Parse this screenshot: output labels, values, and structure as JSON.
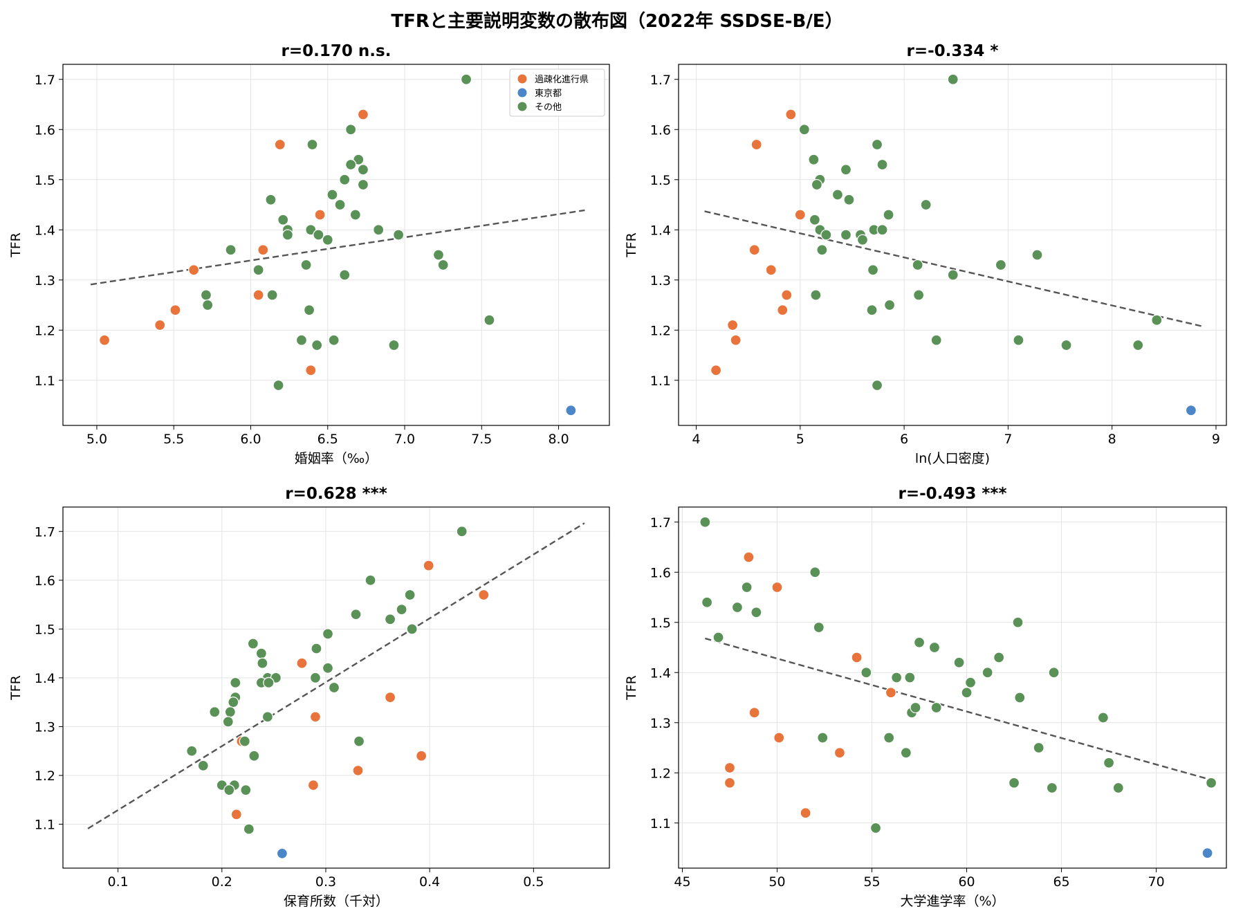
{
  "figure": {
    "title": "TFRと主要説明変数の散布図（2022年 SSDSE-B/E）"
  },
  "legend": {
    "items": [
      {
        "label": "過疎化進行県",
        "color": "#E8743B"
      },
      {
        "label": "東京都",
        "color": "#4A86C8"
      },
      {
        "label": "その他",
        "color": "#5A9157"
      }
    ]
  },
  "chart_data": [
    {
      "type": "scatter",
      "title": "r=0.170 n.s.",
      "xlabel": "婚姻率（‰）",
      "ylabel": "TFR",
      "xlim": [
        4.78,
        8.33
      ],
      "ylim": [
        1.01,
        1.73
      ],
      "xticks": [
        5.0,
        5.5,
        6.0,
        6.5,
        7.0,
        7.5,
        8.0
      ],
      "xtick_labels": [
        "5.0",
        "5.5",
        "6.0",
        "6.5",
        "7.0",
        "7.5",
        "8.0"
      ],
      "yticks": [
        1.1,
        1.2,
        1.3,
        1.4,
        1.5,
        1.6,
        1.7
      ],
      "ytick_labels": [
        "1.1",
        "1.2",
        "1.3",
        "1.4",
        "1.5",
        "1.6",
        "1.7"
      ],
      "legend": true,
      "trend": {
        "x": [
          4.96,
          8.17
        ],
        "y": [
          1.291,
          1.439
        ]
      },
      "series": [
        {
          "name": "過疎化進行県",
          "color": "#E8743B",
          "points": [
            [
              5.05,
              1.18
            ],
            [
              5.41,
              1.21
            ],
            [
              5.51,
              1.24
            ],
            [
              5.63,
              1.32
            ],
            [
              6.05,
              1.27
            ],
            [
              6.08,
              1.36
            ],
            [
              6.19,
              1.57
            ],
            [
              6.39,
              1.12
            ],
            [
              6.45,
              1.43
            ],
            [
              6.73,
              1.63
            ]
          ]
        },
        {
          "name": "東京都",
          "color": "#4A86C8",
          "points": [
            [
              8.08,
              1.04
            ]
          ]
        },
        {
          "name": "その他",
          "color": "#5A9157",
          "points": [
            [
              7.4,
              1.7
            ],
            [
              6.65,
              1.6
            ],
            [
              6.4,
              1.57
            ],
            [
              6.7,
              1.54
            ],
            [
              6.65,
              1.53
            ],
            [
              6.73,
              1.52
            ],
            [
              6.61,
              1.5
            ],
            [
              6.73,
              1.49
            ],
            [
              6.53,
              1.47
            ],
            [
              6.13,
              1.46
            ],
            [
              6.58,
              1.45
            ],
            [
              6.68,
              1.43
            ],
            [
              6.21,
              1.42
            ],
            [
              6.24,
              1.4
            ],
            [
              6.39,
              1.4
            ],
            [
              6.83,
              1.4
            ],
            [
              6.24,
              1.39
            ],
            [
              6.44,
              1.39
            ],
            [
              6.96,
              1.39
            ],
            [
              6.5,
              1.38
            ],
            [
              5.87,
              1.36
            ],
            [
              7.22,
              1.35
            ],
            [
              6.36,
              1.33
            ],
            [
              7.25,
              1.33
            ],
            [
              6.05,
              1.32
            ],
            [
              6.61,
              1.31
            ],
            [
              5.71,
              1.27
            ],
            [
              6.14,
              1.27
            ],
            [
              5.72,
              1.25
            ],
            [
              6.38,
              1.24
            ],
            [
              7.55,
              1.22
            ],
            [
              6.33,
              1.18
            ],
            [
              6.54,
              1.18
            ],
            [
              6.43,
              1.17
            ],
            [
              6.93,
              1.17
            ],
            [
              6.18,
              1.09
            ]
          ]
        }
      ]
    },
    {
      "type": "scatter",
      "title": "r=-0.334 *",
      "xlabel": "ln(人口密度)",
      "ylabel": "TFR",
      "xlim": [
        3.83,
        9.1
      ],
      "ylim": [
        1.01,
        1.73
      ],
      "xticks": [
        4,
        5,
        6,
        7,
        8,
        9
      ],
      "xtick_labels": [
        "4",
        "5",
        "6",
        "7",
        "8",
        "9"
      ],
      "yticks": [
        1.1,
        1.2,
        1.3,
        1.4,
        1.5,
        1.6,
        1.7
      ],
      "ytick_labels": [
        "1.1",
        "1.2",
        "1.3",
        "1.4",
        "1.5",
        "1.6",
        "1.7"
      ],
      "legend": false,
      "trend": {
        "x": [
          4.08,
          8.86
        ],
        "y": [
          1.437,
          1.208
        ]
      },
      "series": [
        {
          "name": "過疎化進行県",
          "color": "#E8743B",
          "points": [
            [
              4.19,
              1.12
            ],
            [
              4.35,
              1.21
            ],
            [
              4.38,
              1.18
            ],
            [
              4.56,
              1.36
            ],
            [
              4.58,
              1.57
            ],
            [
              4.72,
              1.32
            ],
            [
              4.83,
              1.24
            ],
            [
              4.87,
              1.27
            ],
            [
              4.91,
              1.63
            ],
            [
              5.0,
              1.43
            ]
          ]
        },
        {
          "name": "東京都",
          "color": "#4A86C8",
          "points": [
            [
              8.76,
              1.04
            ]
          ]
        },
        {
          "name": "その他",
          "color": "#5A9157",
          "points": [
            [
              6.47,
              1.7
            ],
            [
              5.04,
              1.6
            ],
            [
              5.74,
              1.57
            ],
            [
              5.13,
              1.54
            ],
            [
              5.79,
              1.53
            ],
            [
              5.44,
              1.52
            ],
            [
              5.19,
              1.5
            ],
            [
              5.16,
              1.49
            ],
            [
              5.36,
              1.47
            ],
            [
              5.47,
              1.46
            ],
            [
              6.21,
              1.45
            ],
            [
              5.85,
              1.43
            ],
            [
              5.14,
              1.42
            ],
            [
              5.19,
              1.4
            ],
            [
              5.71,
              1.4
            ],
            [
              5.79,
              1.4
            ],
            [
              5.25,
              1.39
            ],
            [
              5.44,
              1.39
            ],
            [
              5.58,
              1.39
            ],
            [
              5.6,
              1.38
            ],
            [
              5.21,
              1.36
            ],
            [
              7.28,
              1.35
            ],
            [
              6.13,
              1.33
            ],
            [
              6.93,
              1.33
            ],
            [
              5.7,
              1.32
            ],
            [
              6.47,
              1.31
            ],
            [
              5.15,
              1.27
            ],
            [
              6.14,
              1.27
            ],
            [
              5.86,
              1.25
            ],
            [
              5.69,
              1.24
            ],
            [
              8.43,
              1.22
            ],
            [
              6.31,
              1.18
            ],
            [
              7.1,
              1.18
            ],
            [
              7.56,
              1.17
            ],
            [
              8.25,
              1.17
            ],
            [
              5.74,
              1.09
            ]
          ]
        }
      ]
    },
    {
      "type": "scatter",
      "title": "r=0.628 ***",
      "xlabel": "保育所数（千対）",
      "ylabel": "TFR",
      "xlim": [
        0.047,
        0.573
      ],
      "ylim": [
        1.01,
        1.75
      ],
      "xticks": [
        0.1,
        0.2,
        0.3,
        0.4,
        0.5
      ],
      "xtick_labels": [
        "0.1",
        "0.2",
        "0.3",
        "0.4",
        "0.5"
      ],
      "yticks": [
        1.1,
        1.2,
        1.3,
        1.4,
        1.5,
        1.6,
        1.7
      ],
      "ytick_labels": [
        "1.1",
        "1.2",
        "1.3",
        "1.4",
        "1.5",
        "1.6",
        "1.7"
      ],
      "legend": false,
      "trend": {
        "x": [
          0.071,
          0.549
        ],
        "y": [
          1.091,
          1.717
        ]
      },
      "series": [
        {
          "name": "過疎化進行県",
          "color": "#E8743B",
          "points": [
            [
              0.214,
              1.12
            ],
            [
              0.219,
              1.27
            ],
            [
              0.277,
              1.43
            ],
            [
              0.288,
              1.18
            ],
            [
              0.29,
              1.32
            ],
            [
              0.331,
              1.21
            ],
            [
              0.362,
              1.36
            ],
            [
              0.392,
              1.24
            ],
            [
              0.399,
              1.63
            ],
            [
              0.452,
              1.57
            ]
          ]
        },
        {
          "name": "東京都",
          "color": "#4A86C8",
          "points": [
            [
              0.258,
              1.04
            ]
          ]
        },
        {
          "name": "その他",
          "color": "#5A9157",
          "points": [
            [
              0.431,
              1.7
            ],
            [
              0.343,
              1.6
            ],
            [
              0.381,
              1.57
            ],
            [
              0.373,
              1.54
            ],
            [
              0.329,
              1.53
            ],
            [
              0.362,
              1.52
            ],
            [
              0.383,
              1.5
            ],
            [
              0.302,
              1.49
            ],
            [
              0.23,
              1.47
            ],
            [
              0.291,
              1.46
            ],
            [
              0.238,
              1.45
            ],
            [
              0.239,
              1.43
            ],
            [
              0.302,
              1.42
            ],
            [
              0.244,
              1.4
            ],
            [
              0.252,
              1.4
            ],
            [
              0.29,
              1.4
            ],
            [
              0.238,
              1.39
            ],
            [
              0.245,
              1.39
            ],
            [
              0.213,
              1.39
            ],
            [
              0.308,
              1.38
            ],
            [
              0.213,
              1.36
            ],
            [
              0.211,
              1.35
            ],
            [
              0.193,
              1.33
            ],
            [
              0.208,
              1.33
            ],
            [
              0.244,
              1.32
            ],
            [
              0.206,
              1.31
            ],
            [
              0.222,
              1.27
            ],
            [
              0.332,
              1.27
            ],
            [
              0.171,
              1.25
            ],
            [
              0.231,
              1.24
            ],
            [
              0.182,
              1.22
            ],
            [
              0.2,
              1.18
            ],
            [
              0.212,
              1.18
            ],
            [
              0.207,
              1.17
            ],
            [
              0.223,
              1.17
            ],
            [
              0.226,
              1.09
            ]
          ]
        }
      ]
    },
    {
      "type": "scatter",
      "title": "r=-0.493 ***",
      "xlabel": "大学進学率（%）",
      "ylabel": "TFR",
      "xlim": [
        44.8,
        73.7
      ],
      "ylim": [
        1.01,
        1.73
      ],
      "xticks": [
        45,
        50,
        55,
        60,
        65,
        70
      ],
      "xtick_labels": [
        "45",
        "50",
        "55",
        "60",
        "65",
        "70"
      ],
      "yticks": [
        1.1,
        1.2,
        1.3,
        1.4,
        1.5,
        1.6,
        1.7
      ],
      "ytick_labels": [
        "1.1",
        "1.2",
        "1.3",
        "1.4",
        "1.5",
        "1.6",
        "1.7"
      ],
      "legend": false,
      "trend": {
        "x": [
          46.2,
          72.9
        ],
        "y": [
          1.468,
          1.186
        ]
      },
      "series": [
        {
          "name": "過疎化進行県",
          "color": "#E8743B",
          "points": [
            [
              47.5,
              1.21
            ],
            [
              47.5,
              1.18
            ],
            [
              48.5,
              1.63
            ],
            [
              48.8,
              1.32
            ],
            [
              50.0,
              1.57
            ],
            [
              50.1,
              1.27
            ],
            [
              51.5,
              1.12
            ],
            [
              53.3,
              1.24
            ],
            [
              54.2,
              1.43
            ],
            [
              56.0,
              1.36
            ]
          ]
        },
        {
          "name": "東京都",
          "color": "#4A86C8",
          "points": [
            [
              72.7,
              1.04
            ]
          ]
        },
        {
          "name": "その他",
          "color": "#5A9157",
          "points": [
            [
              46.2,
              1.7
            ],
            [
              46.3,
              1.54
            ],
            [
              46.9,
              1.47
            ],
            [
              47.9,
              1.53
            ],
            [
              48.4,
              1.57
            ],
            [
              48.9,
              1.52
            ],
            [
              52.0,
              1.6
            ],
            [
              52.2,
              1.49
            ],
            [
              52.4,
              1.27
            ],
            [
              54.7,
              1.4
            ],
            [
              55.2,
              1.09
            ],
            [
              55.9,
              1.27
            ],
            [
              56.3,
              1.39
            ],
            [
              56.8,
              1.24
            ],
            [
              57.0,
              1.39
            ],
            [
              57.1,
              1.32
            ],
            [
              57.3,
              1.33
            ],
            [
              57.5,
              1.46
            ],
            [
              58.3,
              1.45
            ],
            [
              58.4,
              1.33
            ],
            [
              59.6,
              1.42
            ],
            [
              60.0,
              1.36
            ],
            [
              60.2,
              1.38
            ],
            [
              61.1,
              1.4
            ],
            [
              61.7,
              1.43
            ],
            [
              62.5,
              1.18
            ],
            [
              62.7,
              1.5
            ],
            [
              62.8,
              1.35
            ],
            [
              63.8,
              1.25
            ],
            [
              64.5,
              1.17
            ],
            [
              64.6,
              1.4
            ],
            [
              67.2,
              1.31
            ],
            [
              67.5,
              1.22
            ],
            [
              68.0,
              1.17
            ],
            [
              72.9,
              1.18
            ]
          ]
        }
      ]
    }
  ]
}
